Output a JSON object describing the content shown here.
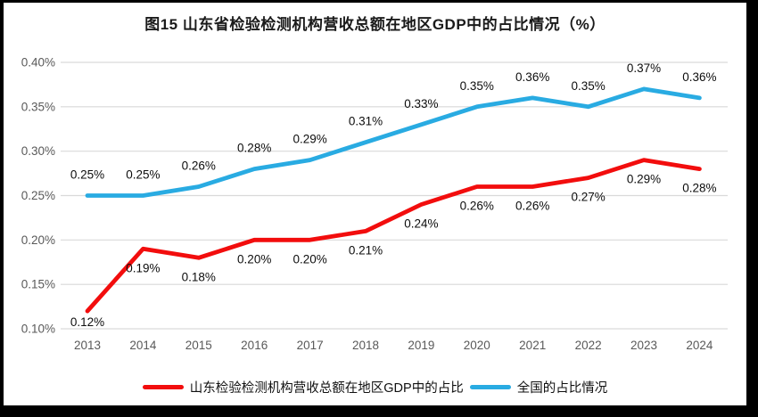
{
  "chart_data": {
    "type": "line",
    "title": "图15  山东省检验检测机构营收总额在地区GDP中的占比情况（%）",
    "categories": [
      "2013",
      "2014",
      "2015",
      "2016",
      "2017",
      "2018",
      "2019",
      "2020",
      "2021",
      "2022",
      "2023",
      "2024"
    ],
    "series": [
      {
        "name": "山东检验检测机构营收总额在地区GDP中的占比",
        "color": "#f20d0d",
        "values": [
          0.12,
          0.19,
          0.18,
          0.2,
          0.2,
          0.21,
          0.24,
          0.26,
          0.26,
          0.27,
          0.29,
          0.28
        ],
        "point_labels": [
          "0.12%",
          "0.19%",
          "0.18%",
          "0.20%",
          "0.20%",
          "0.21%",
          "0.24%",
          "0.26%",
          "0.26%",
          "0.27%",
          "0.29%",
          "0.28%"
        ],
        "label_position": "below"
      },
      {
        "name": "全国的占比情况",
        "color": "#29abe2",
        "values": [
          0.25,
          0.25,
          0.26,
          0.28,
          0.29,
          0.31,
          0.33,
          0.35,
          0.36,
          0.35,
          0.37,
          0.36
        ],
        "point_labels": [
          "0.25%",
          "0.25%",
          "0.26%",
          "0.28%",
          "0.29%",
          "0.31%",
          "0.33%",
          "0.35%",
          "0.36%",
          "0.35%",
          "0.37%",
          "0.36%"
        ],
        "label_position": "above"
      }
    ],
    "ylim": [
      0.1,
      0.4
    ],
    "ytick_labels": [
      "0.10%",
      "0.15%",
      "0.20%",
      "0.25%",
      "0.30%",
      "0.35%",
      "0.40%"
    ],
    "grid": true,
    "legend_position": "bottom"
  }
}
